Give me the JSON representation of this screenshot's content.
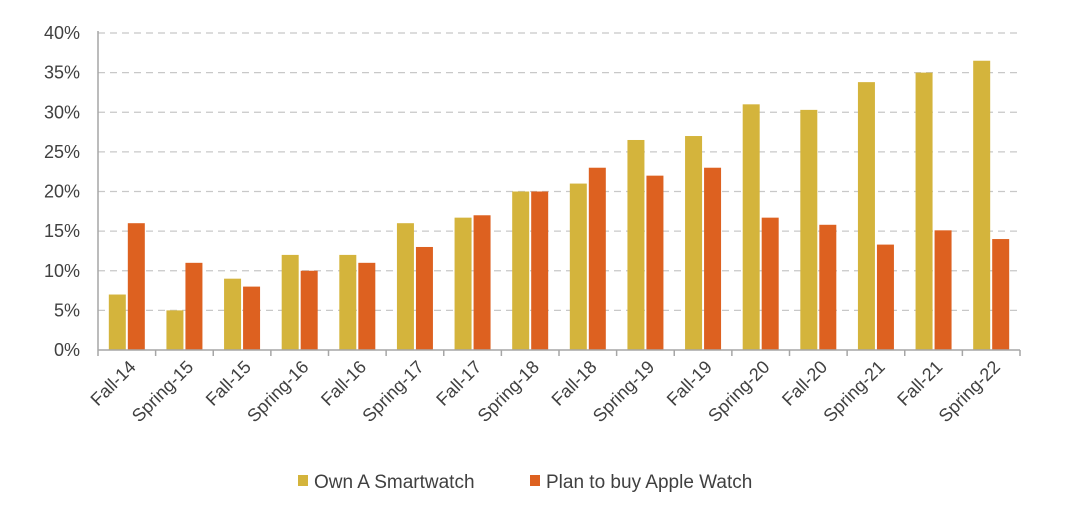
{
  "chart_data": {
    "type": "bar",
    "categories": [
      "Fall-14",
      "Spring-15",
      "Fall-15",
      "Spring-16",
      "Fall-16",
      "Spring-17",
      "Fall-17",
      "Spring-18",
      "Fall-18",
      "Spring-19",
      "Fall-19",
      "Spring-20",
      "Fall-20",
      "Spring-21",
      "Fall-21",
      "Spring-22"
    ],
    "series": [
      {
        "name": "Own A Smartwatch",
        "color": "#d4b43c",
        "values": [
          7,
          5,
          9,
          12,
          12,
          16,
          16.7,
          20,
          21,
          26.5,
          27,
          31,
          30.3,
          33.8,
          35,
          36.5
        ]
      },
      {
        "name": "Plan to buy Apple Watch",
        "color": "#dd6120",
        "values": [
          16,
          11,
          8,
          10,
          11,
          13,
          17,
          20,
          23,
          22,
          23,
          16.7,
          15.8,
          13.3,
          15.1,
          14
        ]
      }
    ],
    "y_ticks": [
      "0%",
      "5%",
      "10%",
      "15%",
      "20%",
      "25%",
      "30%",
      "35%",
      "40%"
    ],
    "ylim": [
      0,
      40
    ],
    "grid": true,
    "legend_position": "bottom",
    "title": "",
    "xlabel": "",
    "ylabel": ""
  }
}
